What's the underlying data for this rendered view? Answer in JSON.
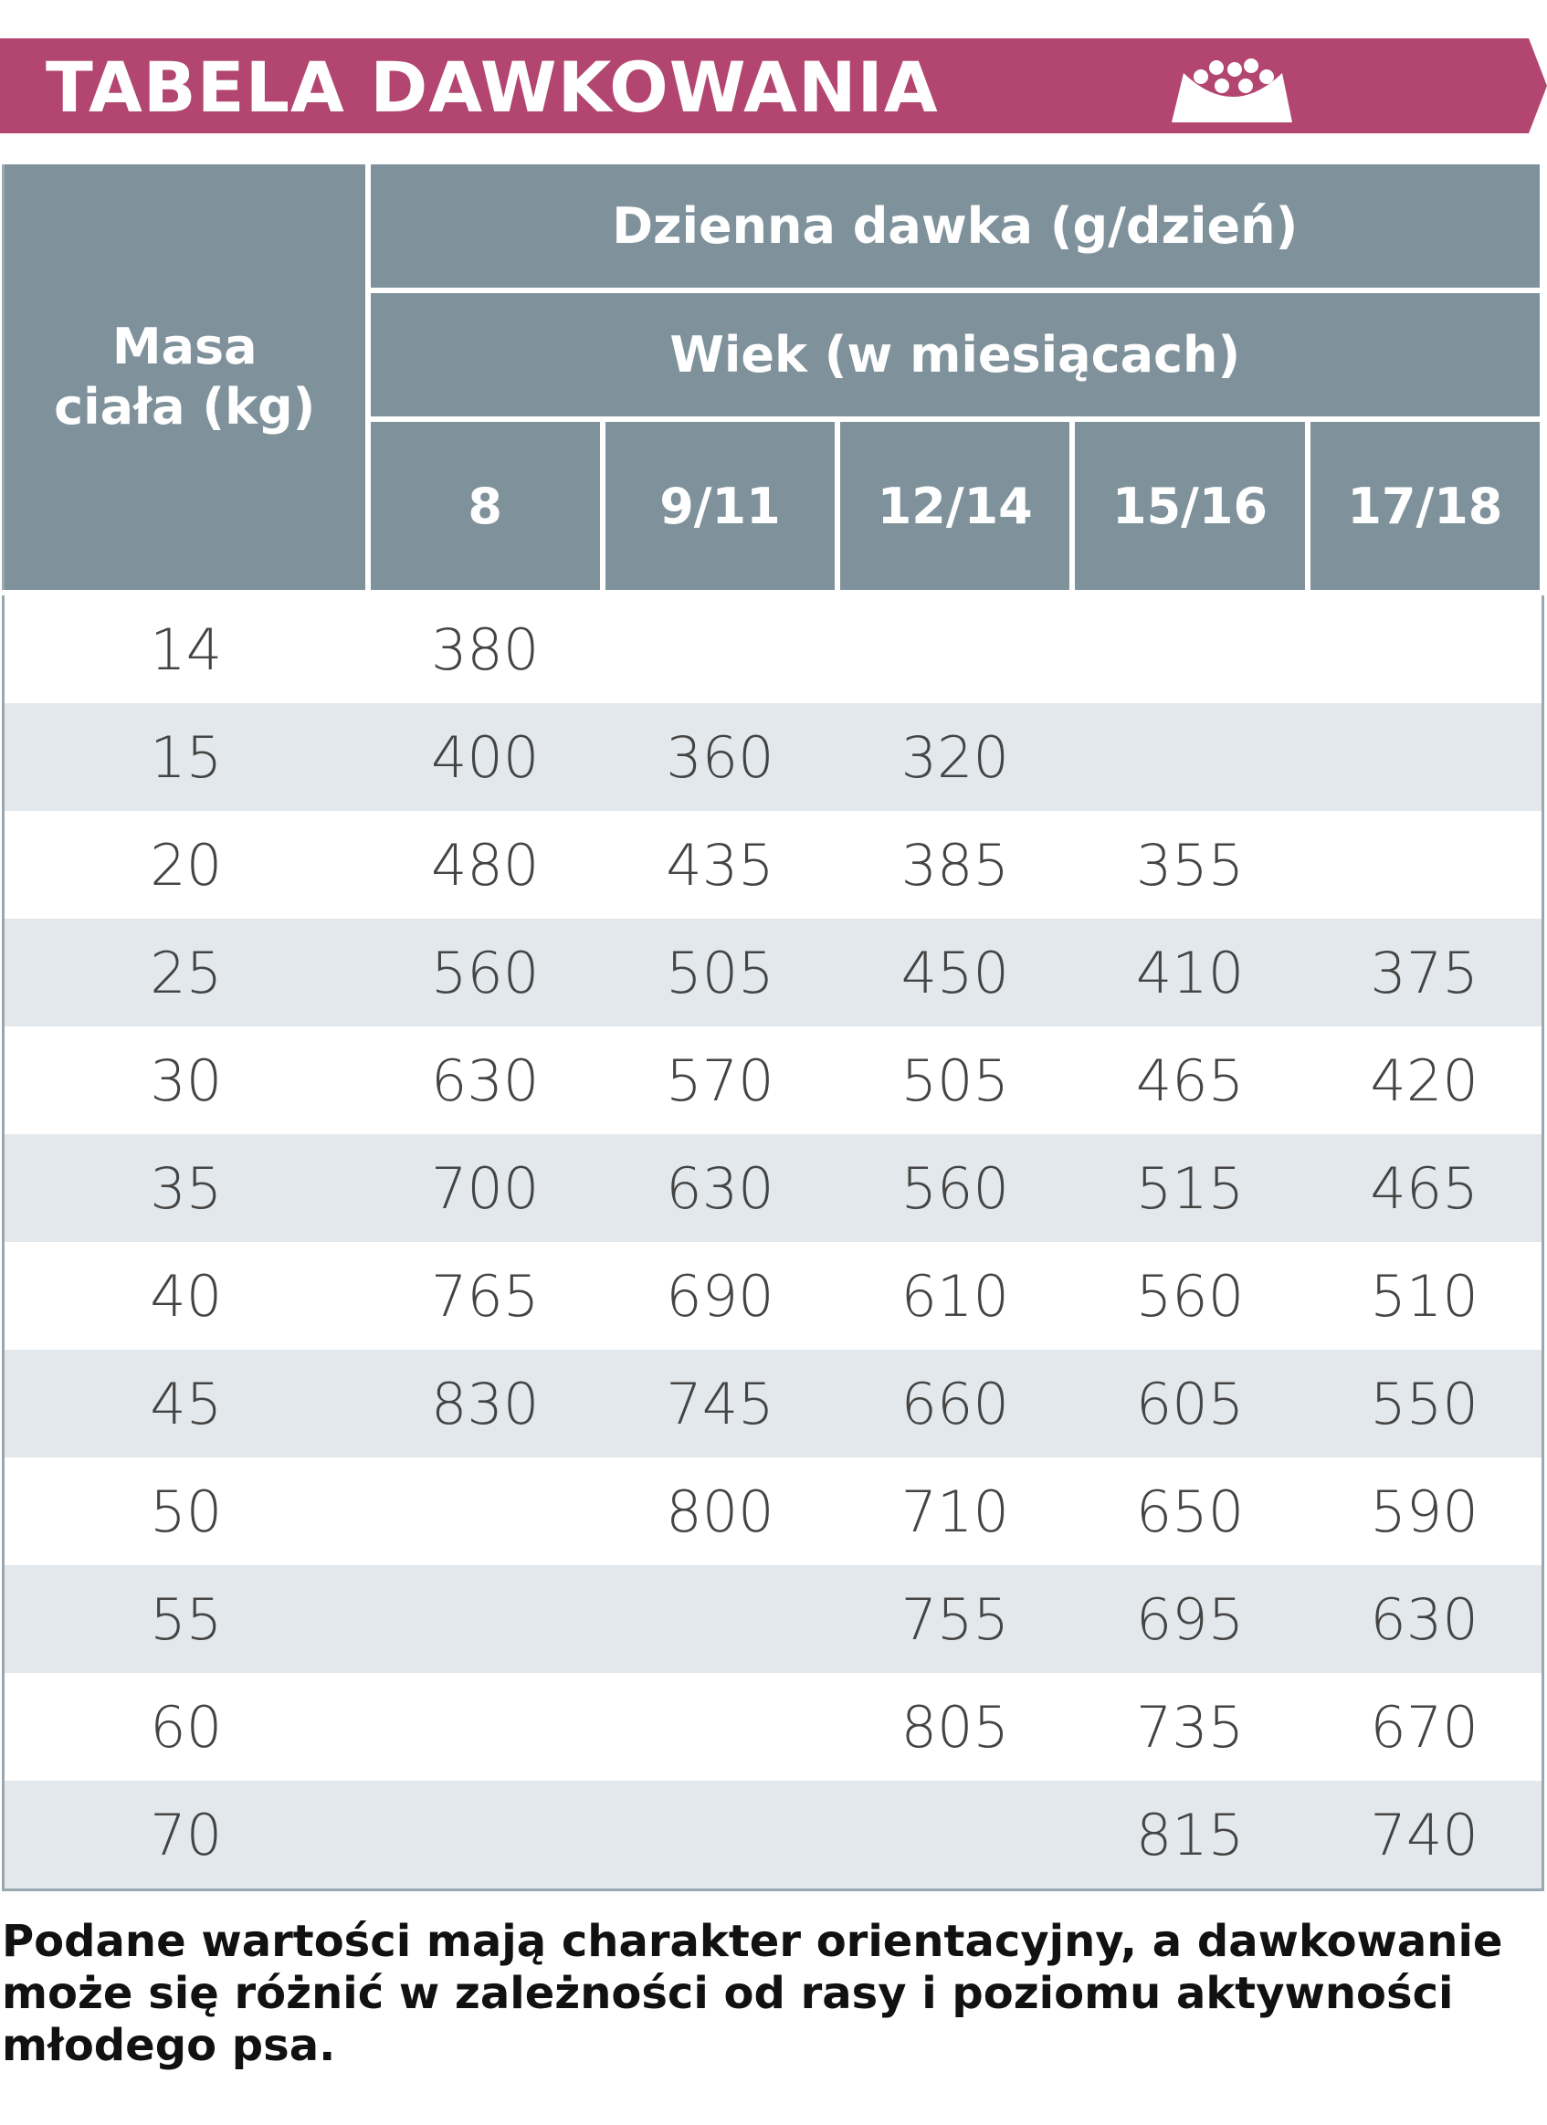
{
  "header": {
    "title": "TABELA DAWKOWANIA",
    "icon": "dog-food-bowl-icon",
    "color": "#b34670"
  },
  "table": {
    "weight_header": "Masa ciała (kg)",
    "dose_header": "Dzienna dawka (g/dzień)",
    "age_header": "Wiek (w miesiącach)",
    "age_columns": [
      "8",
      "9/11",
      "12/14",
      "15/16",
      "17/18"
    ],
    "rows": [
      [
        "14",
        "380",
        "",
        "",
        "",
        ""
      ],
      [
        "15",
        "400",
        "360",
        "320",
        "",
        ""
      ],
      [
        "20",
        "480",
        "435",
        "385",
        "355",
        ""
      ],
      [
        "25",
        "560",
        "505",
        "450",
        "410",
        "375"
      ],
      [
        "30",
        "630",
        "570",
        "505",
        "465",
        "420"
      ],
      [
        "35",
        "700",
        "630",
        "560",
        "515",
        "465"
      ],
      [
        "40",
        "765",
        "690",
        "610",
        "560",
        "510"
      ],
      [
        "45",
        "830",
        "745",
        "660",
        "605",
        "550"
      ],
      [
        "50",
        "",
        "800",
        "710",
        "650",
        "590"
      ],
      [
        "55",
        "",
        "",
        "755",
        "695",
        "630"
      ],
      [
        "60",
        "",
        "",
        "805",
        "735",
        "670"
      ],
      [
        "70",
        "",
        "",
        "",
        "815",
        "740"
      ]
    ]
  },
  "footer": {
    "note": "Podane wartości mają charakter orientacyjny, a dawkowanie może się różnić w zależności od rasy i poziomu aktywności młodego psa."
  }
}
